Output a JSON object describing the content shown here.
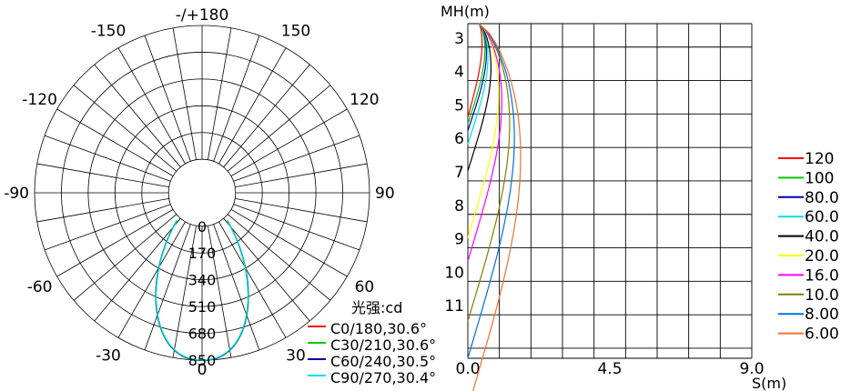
{
  "chart_data": [
    {
      "type": "polar",
      "name": "luminous-intensity-distribution",
      "angle_labels": [
        {
          "text": "-/+180",
          "deg": 180
        },
        {
          "text": "150",
          "deg": 150
        },
        {
          "text": "-150",
          "deg": -150
        },
        {
          "text": "120",
          "deg": 120
        },
        {
          "text": "-120",
          "deg": -120
        },
        {
          "text": "90",
          "deg": 90
        },
        {
          "text": "-90",
          "deg": -90
        },
        {
          "text": "60",
          "deg": 60
        },
        {
          "text": "-60",
          "deg": -60
        },
        {
          "text": "30",
          "deg": 30
        },
        {
          "text": "-30",
          "deg": -30
        },
        {
          "text": "0",
          "deg": 0
        }
      ],
      "radial_labels": [
        "0",
        "170",
        "340",
        "510",
        "680",
        "850"
      ],
      "rmax": 850,
      "inner_hub_fraction": 0.2,
      "spoke_step_deg": 10,
      "unit_label": "光强:cd",
      "series": [
        {
          "name": "C0/180,30.6°",
          "color": "#ff0000",
          "peak": 850,
          "half_angle": 30.6
        },
        {
          "name": "C30/210,30.6°",
          "color": "#00cc00",
          "peak": 852,
          "half_angle": 30.6
        },
        {
          "name": "C60/240,30.5°",
          "color": "#0000aa",
          "peak": 851,
          "half_angle": 30.5
        },
        {
          "name": "C90/270,30.4°",
          "color": "#00e0e0",
          "peak": 849,
          "half_angle": 30.4
        }
      ]
    },
    {
      "type": "isoilluminance",
      "name": "illuminance-vs-mounting-height",
      "ylabel": "MH(m)",
      "xlabel": "S(m)",
      "x_ticks": [
        "0.0",
        "4.5",
        "9.0"
      ],
      "xlim": [
        0,
        9
      ],
      "y_ticks": [
        "3",
        "4",
        "5",
        "6",
        "7",
        "8",
        "9",
        "10",
        "11"
      ],
      "ylim": [
        2.3,
        12.3
      ],
      "grid_cols": 9,
      "curves": [
        {
          "label": "120",
          "color": "#ff0000",
          "max_s": 0.2,
          "depth": 2.8
        },
        {
          "label": "100",
          "color": "#00cc00",
          "max_s": 0.3,
          "depth": 3.0
        },
        {
          "label": "80.0",
          "color": "#0000aa",
          "max_s": 0.35,
          "depth": 3.2
        },
        {
          "label": "60.0",
          "color": "#00e0e0",
          "max_s": 0.4,
          "depth": 3.6
        },
        {
          "label": "40.0",
          "color": "#000000",
          "max_s": 0.5,
          "depth": 4.4
        },
        {
          "label": "20.0",
          "color": "#ffff00",
          "max_s": 0.75,
          "depth": 6.4
        },
        {
          "label": "16.0",
          "color": "#ff00ff",
          "max_s": 0.85,
          "depth": 7.1
        },
        {
          "label": "10.0",
          "color": "#808000",
          "max_s": 1.1,
          "depth": 8.9
        },
        {
          "label": "8.00",
          "color": "#0070e0",
          "max_s": 1.25,
          "depth": 10.0
        },
        {
          "label": "6.00",
          "color": "#f07030",
          "max_s": 1.45,
          "depth": 11.5
        }
      ]
    }
  ]
}
